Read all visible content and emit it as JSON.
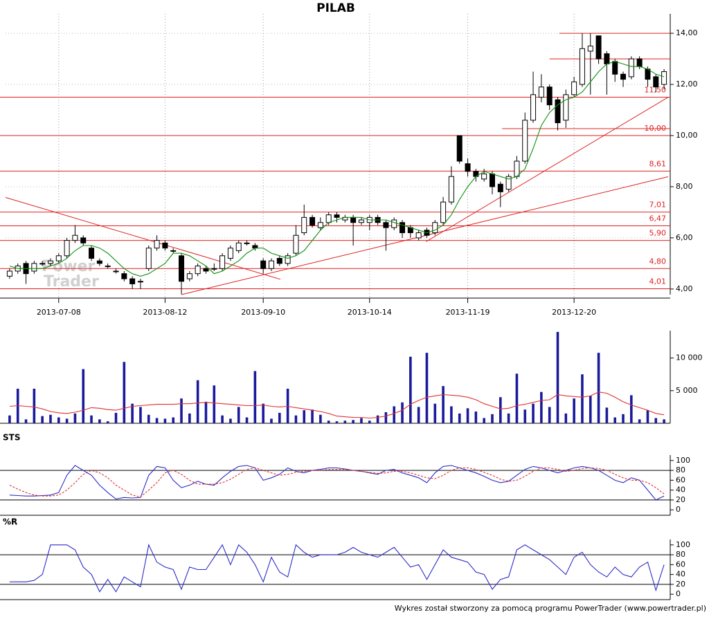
{
  "footer": "Wykres został stworzony za pomocą programu PowerTrader (www.powertrader.pl)",
  "chart_data": [
    {
      "type": "candlestick",
      "title": "PILAB",
      "watermark": [
        "Power",
        "Trader"
      ],
      "xlim": [
        -0.5,
        80.5
      ],
      "xticks": [
        {
          "value": 6,
          "label": "2013-07-08"
        },
        {
          "value": 19,
          "label": "2013-08-12"
        },
        {
          "value": 31,
          "label": "2013-09-10"
        },
        {
          "value": 44,
          "label": "2013-10-14"
        },
        {
          "value": 56,
          "label": "2013-11-19"
        },
        {
          "value": 69,
          "label": "2013-12-20"
        }
      ],
      "ylim": [
        3.78,
        14.76
      ],
      "yticks": [
        {
          "value": 4,
          "label": "4,00"
        },
        {
          "value": 6,
          "label": "6,00"
        },
        {
          "value": 8,
          "label": "8,00"
        },
        {
          "value": 10,
          "label": "10,00"
        },
        {
          "value": 12,
          "label": "12,00"
        },
        {
          "value": 14,
          "label": "14,00"
        }
      ],
      "grid": true,
      "up_color": "#ffffff",
      "down_color": "#000000",
      "open": [
        4.5,
        4.7,
        5.0,
        4.7,
        5.0,
        5.0,
        5.1,
        5.3,
        5.9,
        6.0,
        5.6,
        5.1,
        4.9,
        4.7,
        4.6,
        4.4,
        4.3,
        4.8,
        5.6,
        5.8,
        5.5,
        5.3,
        4.4,
        4.6,
        4.8,
        4.8,
        4.8,
        5.2,
        5.5,
        5.8,
        5.7,
        5.1,
        4.8,
        5.2,
        5.0,
        5.4,
        6.2,
        6.8,
        6.4,
        6.6,
        6.9,
        6.7,
        6.8,
        6.6,
        6.6,
        6.8,
        6.6,
        6.4,
        6.6,
        6.4,
        6.0,
        6.3,
        6.2,
        6.6,
        7.4,
        10.0,
        8.9,
        8.6,
        8.3,
        8.5,
        8.1,
        7.9,
        8.4,
        9.0,
        10.6,
        11.5,
        11.9,
        11.4,
        10.6,
        11.6,
        12.0,
        13.3,
        13.9,
        13.2,
        12.9,
        12.4,
        12.3,
        13.0,
        12.6,
        12.3,
        12.0
      ],
      "high": [
        4.8,
        5.0,
        5.1,
        5.1,
        5.1,
        5.2,
        5.4,
        6.0,
        6.5,
        6.1,
        5.7,
        5.2,
        5.0,
        4.8,
        4.7,
        4.5,
        4.4,
        5.7,
        6.1,
        5.9,
        5.6,
        5.4,
        4.7,
        5.0,
        4.9,
        5.0,
        5.4,
        5.7,
        5.9,
        5.9,
        5.8,
        5.2,
        5.2,
        5.3,
        5.4,
        6.5,
        7.3,
        6.9,
        6.8,
        7.0,
        7.0,
        6.9,
        6.9,
        6.8,
        6.9,
        6.9,
        6.7,
        6.8,
        6.7,
        6.5,
        6.3,
        6.4,
        6.7,
        7.6,
        8.8,
        10.0,
        9.1,
        8.7,
        8.7,
        8.6,
        8.2,
        8.5,
        9.2,
        10.9,
        12.5,
        12.4,
        12.0,
        11.5,
        11.8,
        12.3,
        14.0,
        14.0,
        13.9,
        13.3,
        13.0,
        12.5,
        13.1,
        13.1,
        12.7,
        12.4,
        12.6
      ],
      "low": [
        4.4,
        4.6,
        4.2,
        4.6,
        4.9,
        4.9,
        5.0,
        5.2,
        5.8,
        5.7,
        5.1,
        4.9,
        4.8,
        4.6,
        4.3,
        4.0,
        4.0,
        4.7,
        5.5,
        5.5,
        5.4,
        3.8,
        4.3,
        4.5,
        4.6,
        4.7,
        4.7,
        5.1,
        5.4,
        5.7,
        5.5,
        4.6,
        4.7,
        4.9,
        4.9,
        5.3,
        6.1,
        6.4,
        6.3,
        6.5,
        6.6,
        6.6,
        5.7,
        6.5,
        6.3,
        6.5,
        5.5,
        6.3,
        6.0,
        6.0,
        5.9,
        6.0,
        6.1,
        6.5,
        7.3,
        8.9,
        8.4,
        8.2,
        8.2,
        7.7,
        7.2,
        7.8,
        8.3,
        8.9,
        10.5,
        11.3,
        11.0,
        10.2,
        10.3,
        11.5,
        11.9,
        11.6,
        12.8,
        11.6,
        12.1,
        11.9,
        12.2,
        12.6,
        11.9,
        11.7,
        11.8
      ],
      "close": [
        4.7,
        4.9,
        4.6,
        5.0,
        5.0,
        5.1,
        5.3,
        5.9,
        6.1,
        5.8,
        5.2,
        5.0,
        4.9,
        4.7,
        4.4,
        4.2,
        4.3,
        5.6,
        5.9,
        5.6,
        5.5,
        4.3,
        4.6,
        4.9,
        4.7,
        4.8,
        5.3,
        5.6,
        5.8,
        5.8,
        5.6,
        4.8,
        5.1,
        5.0,
        5.3,
        6.1,
        6.8,
        6.5,
        6.6,
        6.9,
        6.8,
        6.8,
        6.6,
        6.7,
        6.8,
        6.6,
        6.4,
        6.7,
        6.2,
        6.2,
        6.2,
        6.1,
        6.6,
        7.4,
        8.4,
        9.0,
        8.6,
        8.4,
        8.5,
        8.0,
        7.8,
        8.4,
        9.0,
        10.6,
        11.6,
        11.9,
        11.2,
        10.5,
        11.6,
        12.1,
        13.4,
        13.5,
        13.0,
        12.8,
        12.4,
        12.2,
        13.0,
        12.7,
        12.2,
        11.9,
        12.5
      ],
      "ma": {
        "color": "#109010",
        "values": [
          4.9,
          4.8,
          4.8,
          4.8,
          4.8,
          4.9,
          5.0,
          5.2,
          5.5,
          5.7,
          5.7,
          5.6,
          5.4,
          5.1,
          4.8,
          4.6,
          4.5,
          4.6,
          4.8,
          5.0,
          5.4,
          5.4,
          5.3,
          5.1,
          4.9,
          4.6,
          4.7,
          4.9,
          5.1,
          5.4,
          5.6,
          5.6,
          5.4,
          5.3,
          5.2,
          5.3,
          5.5,
          5.9,
          6.3,
          6.6,
          6.7,
          6.8,
          6.8,
          6.8,
          6.7,
          6.7,
          6.7,
          6.6,
          6.5,
          6.4,
          6.3,
          6.2,
          6.3,
          6.5,
          6.9,
          7.5,
          8.0,
          8.4,
          8.6,
          8.5,
          8.4,
          8.3,
          8.4,
          8.7,
          9.5,
          10.4,
          10.9,
          11.2,
          11.4,
          11.5,
          11.7,
          12.1,
          12.5,
          12.8,
          12.9,
          12.8,
          12.7,
          12.7,
          12.6,
          12.4,
          12.3
        ]
      },
      "level_color": "#e02020",
      "levels": [
        {
          "value": 11.5,
          "label": "11,50"
        },
        {
          "value": 10,
          "label": "10,00"
        },
        {
          "value": 8.61,
          "label": "8,61"
        },
        {
          "value": 7.01,
          "label": "7,01"
        },
        {
          "value": 6.47,
          "label": "6,47"
        },
        {
          "value": 5.9,
          "label": "5,90"
        },
        {
          "value": 4.8,
          "label": "4,80"
        },
        {
          "value": 4.01,
          "label": "4,01"
        }
      ],
      "short_levels": [
        {
          "value": 14,
          "from": 67.2
        },
        {
          "value": 13,
          "from": 66.0
        },
        {
          "value": 10.27,
          "from": 60.2
        }
      ],
      "trendlines": [
        [
          [
            -0.5,
            7.58
          ],
          [
            33.1,
            4.38
          ]
        ],
        [
          [
            21.0,
            3.78
          ],
          [
            80.5,
            8.39
          ]
        ],
        [
          [
            50.9,
            5.85
          ],
          [
            80.5,
            11.5
          ]
        ]
      ]
    },
    {
      "type": "bar",
      "color": "#1a1a9c",
      "ylim": [
        0,
        14200
      ],
      "yticks": [
        {
          "value": 5000,
          "label": "5 000"
        },
        {
          "value": 10000,
          "label": "10 000"
        }
      ],
      "values": [
        1200,
        5300,
        600,
        5300,
        1100,
        1300,
        900,
        700,
        1500,
        8300,
        1200,
        600,
        300,
        1600,
        9400,
        3000,
        2500,
        1300,
        800,
        700,
        900,
        3800,
        1500,
        6600,
        3300,
        5800,
        1200,
        700,
        2500,
        900,
        8000,
        3000,
        700,
        1600,
        5300,
        1200,
        2000,
        2100,
        1300,
        400,
        300,
        400,
        500,
        800,
        400,
        1200,
        1700,
        2600,
        3200,
        10200,
        2500,
        10800,
        3000,
        5700,
        2600,
        1500,
        2300,
        1800,
        800,
        1400,
        4000,
        1500,
        7600,
        2100,
        3000,
        4800,
        2500,
        14000,
        1500,
        3800,
        7500,
        4200,
        10800,
        2400,
        900,
        1400,
        4300,
        600,
        2000,
        800,
        600
      ],
      "average": {
        "color": "#e03030",
        "values": [
          2600,
          2700,
          2600,
          2500,
          2200,
          1800,
          1600,
          1500,
          1700,
          2000,
          2400,
          2300,
          2100,
          2000,
          2300,
          2600,
          2700,
          2800,
          2900,
          2900,
          2900,
          3000,
          3000,
          3100,
          3200,
          3100,
          3000,
          2900,
          2800,
          2700,
          2700,
          2800,
          2600,
          2500,
          2600,
          2400,
          2200,
          2000,
          1800,
          1500,
          1100,
          1000,
          900,
          900,
          800,
          900,
          1100,
          1500,
          2000,
          2900,
          3500,
          4000,
          4200,
          4400,
          4300,
          4200,
          4000,
          3600,
          3000,
          2600,
          2200,
          2300,
          2700,
          2900,
          3200,
          3500,
          3600,
          4400,
          4200,
          4100,
          4000,
          4200,
          4800,
          4600,
          4000,
          3300,
          2800,
          2400,
          2000,
          1500,
          1300
        ]
      }
    },
    {
      "type": "line",
      "title": "STS",
      "ylim": [
        -11,
        111
      ],
      "yticks": [
        0,
        20,
        40,
        60,
        80,
        100
      ],
      "levels": [
        20,
        80
      ],
      "series": [
        {
          "color": "#2b2bc8",
          "values": [
            30,
            29,
            28,
            28,
            29,
            30,
            35,
            70,
            90,
            80,
            70,
            50,
            35,
            22,
            25,
            24,
            25,
            70,
            88,
            85,
            60,
            45,
            50,
            58,
            52,
            50,
            65,
            78,
            88,
            90,
            85,
            60,
            65,
            72,
            85,
            78,
            75,
            80,
            82,
            85,
            85,
            83,
            80,
            78,
            75,
            72,
            80,
            82,
            75,
            70,
            65,
            55,
            75,
            88,
            90,
            85,
            80,
            75,
            68,
            60,
            55,
            58,
            70,
            82,
            88,
            85,
            80,
            75,
            80,
            85,
            88,
            85,
            80,
            70,
            60,
            55,
            65,
            60,
            40,
            20,
            28
          ]
        },
        {
          "color": "#e03030",
          "dashed": true,
          "values": [
            50,
            42,
            35,
            30,
            28,
            28,
            30,
            40,
            55,
            72,
            80,
            75,
            65,
            50,
            40,
            30,
            26,
            40,
            55,
            75,
            80,
            72,
            60,
            52,
            52,
            52,
            55,
            62,
            72,
            82,
            85,
            80,
            75,
            70,
            72,
            76,
            78,
            80,
            80,
            82,
            82,
            82,
            80,
            78,
            76,
            74,
            75,
            78,
            78,
            75,
            70,
            65,
            63,
            70,
            80,
            85,
            85,
            82,
            76,
            70,
            62,
            58,
            60,
            68,
            78,
            85,
            85,
            82,
            78,
            80,
            84,
            85,
            84,
            80,
            72,
            65,
            60,
            60,
            55,
            45,
            32
          ]
        }
      ]
    },
    {
      "type": "line",
      "title": "%R",
      "ylim": [
        -11,
        111
      ],
      "yticks": [
        0,
        20,
        40,
        60,
        80,
        100
      ],
      "levels": [
        20,
        80
      ],
      "series": [
        {
          "color": "#2b2bc8",
          "values": [
            25,
            25,
            25,
            28,
            40,
            100,
            100,
            100,
            90,
            55,
            40,
            5,
            30,
            5,
            35,
            25,
            15,
            100,
            65,
            55,
            50,
            10,
            55,
            50,
            50,
            75,
            100,
            60,
            100,
            85,
            60,
            25,
            75,
            45,
            35,
            100,
            85,
            75,
            80,
            80,
            80,
            85,
            95,
            85,
            80,
            75,
            85,
            95,
            75,
            55,
            60,
            30,
            60,
            90,
            75,
            70,
            65,
            45,
            40,
            10,
            30,
            35,
            90,
            100,
            90,
            80,
            70,
            55,
            40,
            75,
            85,
            60,
            45,
            35,
            55,
            40,
            35,
            55,
            65,
            8,
            60
          ]
        }
      ]
    }
  ]
}
